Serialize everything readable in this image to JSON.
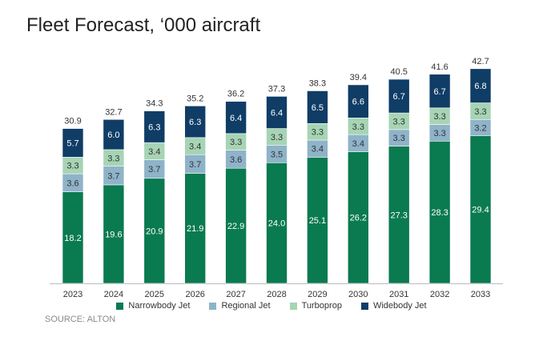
{
  "chart_data": {
    "type": "bar",
    "stacked": true,
    "title": "Fleet Forecast, ‘000 aircraft",
    "source": "SOURCE: ALTON",
    "categories": [
      "2023",
      "2024",
      "2025",
      "2026",
      "2027",
      "2028",
      "2029",
      "2030",
      "2031",
      "2032",
      "2033"
    ],
    "series": [
      {
        "name": "Narrowbody Jet",
        "color": "#0a7a50",
        "label_color": "#ffffff",
        "values": [
          18.2,
          19.6,
          20.9,
          21.9,
          22.9,
          24.0,
          25.1,
          26.2,
          27.3,
          28.3,
          29.4
        ]
      },
      {
        "name": "Regional Jet",
        "color": "#8fb3c9",
        "label_color": "#333333",
        "values": [
          3.6,
          3.7,
          3.7,
          3.7,
          3.6,
          3.5,
          3.4,
          3.4,
          3.3,
          3.3,
          3.2
        ]
      },
      {
        "name": "Turboprop",
        "color": "#a6d4b4",
        "label_color": "#333333",
        "values": [
          3.3,
          3.3,
          3.4,
          3.4,
          3.3,
          3.3,
          3.3,
          3.3,
          3.3,
          3.3,
          3.3
        ]
      },
      {
        "name": "Widebody Jet",
        "color": "#0f3d66",
        "label_color": "#ffffff",
        "values": [
          5.7,
          6.0,
          6.3,
          6.3,
          6.4,
          6.4,
          6.5,
          6.6,
          6.7,
          6.7,
          6.8
        ]
      }
    ],
    "totals": [
      "30.9",
      "32.7",
      "34.3",
      "35.2",
      "36.2",
      "37.3",
      "38.3",
      "39.4",
      "40.5",
      "41.6",
      "42.7"
    ],
    "ylim": [
      0,
      45
    ],
    "grid": false,
    "legend": "bottom"
  }
}
